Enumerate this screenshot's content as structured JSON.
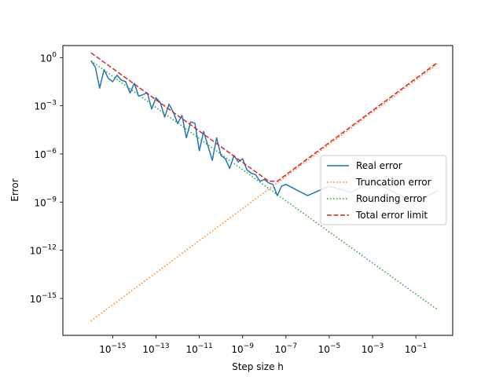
{
  "chart_data": {
    "type": "line",
    "xlabel": "Step size h",
    "ylabel": "Error",
    "xscale": "log",
    "yscale": "log",
    "xlim_log10": [
      -17.3,
      0.7
    ],
    "ylim_log10": [
      -17.3,
      0.75
    ],
    "x_ticks": [
      {
        "exp": -15,
        "mantissa": "10",
        "power": "−15"
      },
      {
        "exp": -13,
        "mantissa": "10",
        "power": "−13"
      },
      {
        "exp": -11,
        "mantissa": "10",
        "power": "−11"
      },
      {
        "exp": -9,
        "mantissa": "10",
        "power": "−9"
      },
      {
        "exp": -7,
        "mantissa": "10",
        "power": "−7"
      },
      {
        "exp": -5,
        "mantissa": "10",
        "power": "−5"
      },
      {
        "exp": -3,
        "mantissa": "10",
        "power": "−3"
      },
      {
        "exp": -1,
        "mantissa": "10",
        "power": "−1"
      }
    ],
    "y_ticks": [
      {
        "exp": 0,
        "mantissa": "10",
        "power": "0"
      },
      {
        "exp": -3,
        "mantissa": "10",
        "power": "−3"
      },
      {
        "exp": -6,
        "mantissa": "10",
        "power": "−6"
      },
      {
        "exp": -9,
        "mantissa": "10",
        "power": "−9"
      },
      {
        "exp": -12,
        "mantissa": "10",
        "power": "−12"
      },
      {
        "exp": -15,
        "mantissa": "10",
        "power": "−15"
      }
    ],
    "legend_position": "center-right",
    "grid": false,
    "series": [
      {
        "name": "Real error",
        "color": "#1f77b4",
        "style": "solid",
        "log10_x": [
          -16.0,
          -15.8,
          -15.6,
          -15.4,
          -15.2,
          -15.0,
          -14.8,
          -14.6,
          -14.4,
          -14.2,
          -14.0,
          -13.8,
          -13.6,
          -13.4,
          -13.2,
          -13.0,
          -12.8,
          -12.6,
          -12.4,
          -12.2,
          -12.0,
          -11.8,
          -11.6,
          -11.4,
          -11.2,
          -11.0,
          -10.8,
          -10.6,
          -10.4,
          -10.2,
          -10.0,
          -9.8,
          -9.6,
          -9.4,
          -9.2,
          -9.0,
          -8.8,
          -8.6,
          -8.4,
          -8.2,
          -8.0,
          -7.8,
          -7.6,
          -7.4,
          -7.2,
          -7.0,
          -6.0,
          -5.0,
          -4.0,
          -3.0,
          -2.0,
          -1.0,
          0.0
        ],
        "log10_y": [
          -0.2,
          -0.6,
          -1.9,
          -0.75,
          -1.3,
          -1.5,
          -1.1,
          -1.4,
          -1.5,
          -2.2,
          -1.6,
          -2.4,
          -2.3,
          -2.2,
          -3.2,
          -2.5,
          -2.8,
          -3.7,
          -2.9,
          -3.4,
          -4.1,
          -3.6,
          -5.0,
          -4.0,
          -4.1,
          -5.8,
          -4.6,
          -5.5,
          -6.4,
          -5.0,
          -6.1,
          -6.3,
          -6.9,
          -6.1,
          -6.5,
          -6.3,
          -7.0,
          -7.2,
          -7.3,
          -7.7,
          -7.6,
          -7.8,
          -7.9,
          -8.6,
          -8.0,
          -7.9,
          -8.6,
          -8.0,
          -8.4,
          -7.7,
          -8.4,
          -9.0,
          -8.3
        ],
        "points_note": ""
      },
      {
        "name": "Truncation error",
        "color": "#ff7f0e",
        "style": "dotted",
        "log10_x": [
          -16.0,
          0.0
        ],
        "log10_y": [
          -16.4,
          -0.4
        ]
      },
      {
        "name": "Rounding error",
        "color": "#2ca02c",
        "style": "dotted",
        "log10_x": [
          -16.0,
          0.0
        ],
        "log10_y": [
          -0.2,
          -15.7
        ]
      },
      {
        "name": "Total error limit",
        "color": "#d62728",
        "style": "dashed",
        "log10_x": [
          -16.0,
          -7.8,
          -7.4,
          0.0
        ],
        "log10_y": [
          0.3,
          -7.7,
          -7.7,
          -0.3
        ]
      }
    ]
  }
}
